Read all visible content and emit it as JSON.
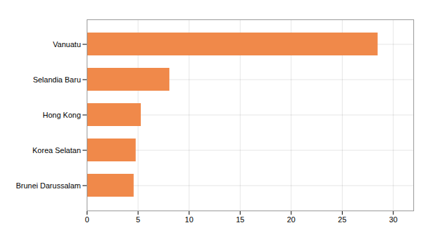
{
  "chart_data": {
    "type": "bar",
    "orientation": "horizontal",
    "categories": [
      "Brunei Darussalam",
      "Korea Selatan",
      "Hong Kong",
      "Selandia Baru",
      "Vanuatu"
    ],
    "values": [
      4.6,
      4.8,
      5.3,
      8.1,
      28.5
    ],
    "color": "#f0894a",
    "xlim": [
      0,
      32
    ],
    "xticks": [
      0,
      5,
      10,
      15,
      20,
      25,
      30
    ],
    "grid": true
  }
}
